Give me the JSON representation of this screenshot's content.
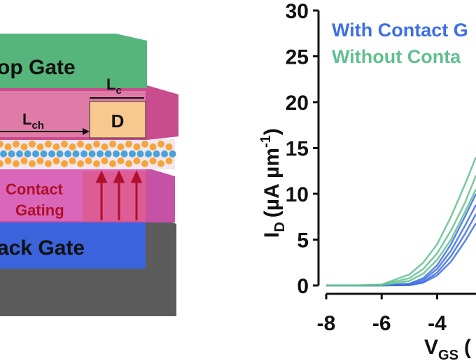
{
  "diagram": {
    "top_gate": "op Gate",
    "lc_main": "L",
    "lc_sub": "c",
    "lch_main": "L",
    "lch_sub": "ch",
    "drain": "D",
    "gating_1": "Contact",
    "gating_2": "Gating",
    "back_gate": "ack Gate"
  },
  "chart_data": {
    "type": "line",
    "y_label": {
      "main": "I",
      "sub": "D",
      "unit": "(µA µm",
      "sup": "-1",
      "close": ")"
    },
    "x_label": {
      "main": "V",
      "sub": "GS",
      "rest": "("
    },
    "x": [
      -8,
      -7,
      -6,
      -5,
      -4.5,
      -4,
      -3.5,
      -3,
      -2.6
    ],
    "xlim": [
      -8,
      -2.6
    ],
    "xticks": [
      -8,
      -6,
      -4
    ],
    "ylim": [
      0,
      30
    ],
    "yticks": [
      0,
      5,
      10,
      15,
      20,
      25,
      30
    ],
    "series": [
      {
        "name": "With Contact G",
        "color": "#3d6fe0",
        "values": [
          [
            0,
            0,
            0,
            0.2,
            0.8,
            2.2,
            4.5,
            7.5,
            10
          ],
          [
            0,
            0,
            0,
            0.1,
            0.6,
            1.8,
            3.8,
            6.5,
            8.8
          ],
          [
            0,
            0,
            0,
            0.05,
            0.4,
            1.4,
            3.2,
            5.6,
            7.8
          ],
          [
            0,
            0,
            0,
            0.02,
            0.3,
            1.1,
            2.6,
            4.8,
            6.8
          ]
        ]
      },
      {
        "name": "Without Conta",
        "color": "#62c08f",
        "values": [
          [
            0,
            0,
            0.1,
            1.2,
            2.5,
            4.5,
            7.5,
            11,
            14
          ],
          [
            0,
            0,
            0.05,
            0.8,
            1.8,
            3.5,
            6,
            9,
            12
          ],
          [
            0,
            0,
            0.02,
            0.5,
            1.3,
            2.8,
            5,
            8,
            10.5
          ]
        ]
      }
    ]
  }
}
